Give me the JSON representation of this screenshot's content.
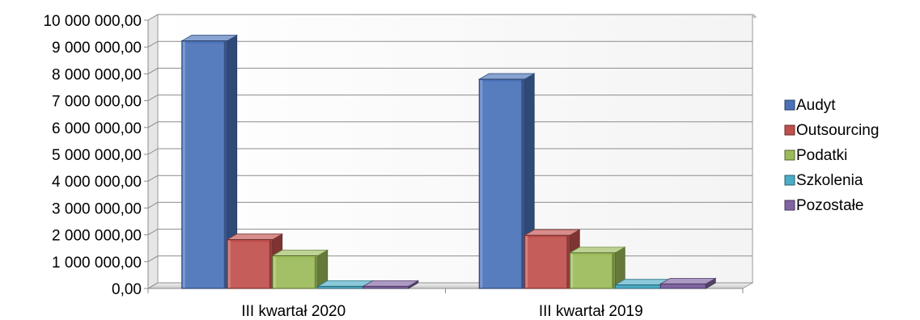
{
  "chart_data": {
    "type": "bar",
    "title": "",
    "xlabel": "",
    "ylabel": "",
    "categories": [
      "III kwartał 2020",
      "III kwartał 2019"
    ],
    "series": [
      {
        "name": "Audyt",
        "values": [
          9230000,
          7800000
        ],
        "color": "#4a72b8"
      },
      {
        "name": "Outsourcing",
        "values": [
          1820000,
          1980000
        ],
        "color": "#c0504d"
      },
      {
        "name": "Podatki",
        "values": [
          1220000,
          1330000
        ],
        "color": "#9bbb59"
      },
      {
        "name": "Szkolenia",
        "values": [
          80000,
          130000
        ],
        "color": "#4bacc6"
      },
      {
        "name": "Pozostałe",
        "values": [
          80000,
          170000
        ],
        "color": "#8064a2"
      }
    ],
    "ylim": [
      0,
      10000000
    ],
    "ytick_labels": [
      "0,00",
      "1 000 000,00",
      "2 000 000,00",
      "3 000 000,00",
      "4 000 000,00",
      "5 000 000,00",
      "6 000 000,00",
      "7 000 000,00",
      "8 000 000,00",
      "9 000 000,00",
      "10 000 000,00"
    ],
    "grid": true,
    "legend_position": "right"
  }
}
